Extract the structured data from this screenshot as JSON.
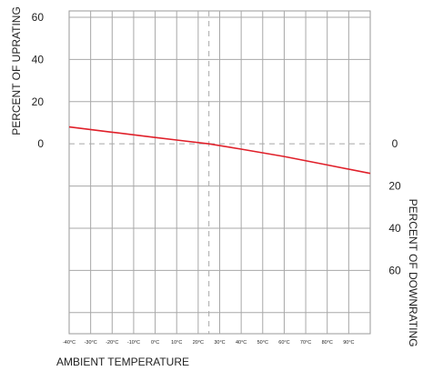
{
  "chart_data": {
    "type": "line",
    "title": "",
    "xlabel": "AMBIENT TEMPERATURE",
    "ylabel_left": "PERCENT OF UPRATING",
    "ylabel_right": "PERCENT OF DOWNRATING",
    "x_ticks": [
      "-40°C",
      "-30°C",
      "-20°C",
      "-10°C",
      "0°C",
      "10°C",
      "20°C",
      "30°C",
      "40°C",
      "50°C",
      "60°C",
      "70°C",
      "80°C",
      "90°C"
    ],
    "y_ticks_left": [
      "60",
      "40",
      "20",
      "0"
    ],
    "y_ticks_right": [
      "0",
      "20",
      "40",
      "60"
    ],
    "xlim": [
      -40,
      100
    ],
    "ylim": [
      -90,
      63
    ],
    "reference_x": 25,
    "reference_y": 0,
    "grid": true,
    "series": [
      {
        "color": "#e0202a",
        "points": [
          {
            "x": -40,
            "y": 8
          },
          {
            "x": -20,
            "y": 5.5
          },
          {
            "x": 0,
            "y": 3
          },
          {
            "x": 10,
            "y": 1.8
          },
          {
            "x": 25,
            "y": 0
          },
          {
            "x": 40,
            "y": -2.5
          },
          {
            "x": 60,
            "y": -6
          },
          {
            "x": 80,
            "y": -10
          },
          {
            "x": 100,
            "y": -14
          }
        ]
      }
    ]
  }
}
